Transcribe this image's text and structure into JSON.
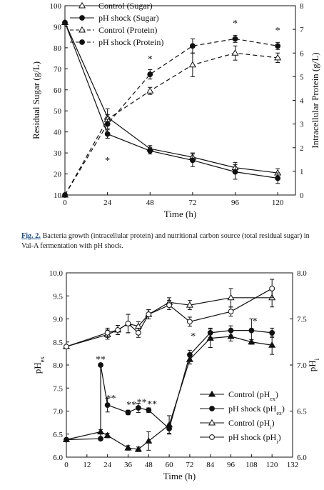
{
  "caption": {
    "label": "Fig. 2.",
    "text": " Bacteria growth (intracellular protein) and nutritional carbon source (total residual sugar) in Val-A fermentation with pH shock."
  },
  "chart_data": [
    {
      "type": "line",
      "xlabel": "Time (h)",
      "ylabel": "Residual Sugar (g/L)",
      "y2label": "Intracellular Protein (g/L)",
      "xlim": [
        0,
        130
      ],
      "ylim": [
        10,
        100
      ],
      "y2lim": [
        0,
        8
      ],
      "xticks": [
        0,
        24,
        48,
        72,
        96,
        120
      ],
      "yticks": [
        10,
        20,
        30,
        40,
        50,
        60,
        70,
        80,
        90,
        100
      ],
      "y2ticks": [
        0,
        1,
        2,
        3,
        4,
        5,
        6,
        7,
        8
      ],
      "legend_position": "top-left",
      "series": [
        {
          "name": "Control (Sugar)",
          "axis": "left",
          "dash": false,
          "marker": "triangle-open",
          "x": [
            0,
            24,
            48,
            72,
            96,
            120
          ],
          "y": [
            92,
            47,
            32,
            28,
            23,
            20.5
          ],
          "err": [
            0,
            4,
            1.5,
            2,
            2.5,
            2
          ]
        },
        {
          "name": "pH shock (Sugar)",
          "axis": "left",
          "dash": false,
          "marker": "circle-filled",
          "x": [
            0,
            24,
            48,
            72,
            96,
            120
          ],
          "y": [
            92,
            39,
            31,
            26.5,
            21,
            18
          ],
          "err": [
            0,
            2,
            1.5,
            3,
            3.5,
            2.5
          ]
        },
        {
          "name": "Control (Protein)",
          "axis": "right",
          "dash": true,
          "marker": "triangle-open",
          "x": [
            0,
            24,
            48,
            72,
            96,
            120
          ],
          "y": [
            0,
            3.2,
            4.4,
            5.5,
            6.0,
            5.8
          ],
          "err": [
            0,
            0.2,
            0.15,
            0.5,
            0.3,
            0.2
          ]
        },
        {
          "name": "pH shock (Protein)",
          "axis": "right",
          "dash": true,
          "marker": "circle-filled",
          "x": [
            0,
            24,
            48,
            72,
            96,
            120
          ],
          "y": [
            0,
            3.0,
            5.1,
            6.3,
            6.6,
            6.3
          ],
          "err": [
            0,
            0.2,
            0.2,
            0.3,
            0.15,
            0.15
          ]
        }
      ],
      "annotations": [
        {
          "text": "*",
          "x": 24,
          "y": 27,
          "axis": "left"
        },
        {
          "text": "*",
          "x": 48,
          "y": 5.8,
          "axis": "right"
        },
        {
          "text": "*",
          "x": 96,
          "y": 7.3,
          "axis": "right"
        },
        {
          "text": "*",
          "x": 120,
          "y": 7.0,
          "axis": "right"
        }
      ]
    },
    {
      "type": "line",
      "xlabel": "Time (h)",
      "ylabel": "pH",
      "ylabel_sub": "ex",
      "y2label": "pH",
      "y2label_sub": "i",
      "xlim": [
        0,
        132
      ],
      "ylim": [
        6.0,
        10.0
      ],
      "y2lim": [
        6.0,
        8.0
      ],
      "xticks": [
        0,
        12,
        24,
        36,
        48,
        60,
        72,
        84,
        96,
        108,
        120,
        132
      ],
      "yticks": [
        6.0,
        6.5,
        7.0,
        7.5,
        8.0,
        8.5,
        9.0,
        9.5,
        10.0
      ],
      "y2ticks": [
        6.0,
        6.5,
        7.0,
        7.5,
        8.0
      ],
      "legend_position": "bottom-right",
      "series": [
        {
          "name": "Control (pH",
          "sub": "ex",
          "name_end": ")",
          "axis": "left",
          "marker": "triangle-filled",
          "x": [
            0,
            20,
            24,
            36,
            42,
            48,
            60,
            72,
            84,
            96,
            108,
            120
          ],
          "y": [
            6.38,
            6.55,
            6.47,
            6.2,
            6.17,
            6.35,
            6.7,
            8.12,
            8.58,
            8.62,
            8.5,
            8.43
          ],
          "err": [
            0,
            0.05,
            0.05,
            0.05,
            0.05,
            0.2,
            0.2,
            0.1,
            0.2,
            0.1,
            0.05,
            0.2
          ]
        },
        {
          "name": "pH shock (pH",
          "sub": "ex",
          "name_end": ")",
          "axis": "left",
          "marker": "circle-filled",
          "x": [
            0,
            20,
            20,
            24,
            36,
            42,
            48,
            60,
            72,
            84,
            96,
            108,
            120
          ],
          "y": [
            6.38,
            6.4,
            8.0,
            7.13,
            6.97,
            7.07,
            7.02,
            6.62,
            8.22,
            8.7,
            8.75,
            8.75,
            8.7
          ],
          "err": [
            0,
            0,
            0,
            0.15,
            0.05,
            0.1,
            0.05,
            0.1,
            0.1,
            0.1,
            0.1,
            0.25,
            0.1
          ]
        },
        {
          "name": "Control (pH",
          "sub": "i",
          "name_end": ")",
          "axis": "right",
          "marker": "triangle-open",
          "x": [
            0,
            24,
            30,
            36,
            42,
            48,
            60,
            72,
            96,
            120
          ],
          "y": [
            7.2,
            7.33,
            7.38,
            7.45,
            7.42,
            7.55,
            7.68,
            7.65,
            7.73,
            7.73
          ],
          "err": [
            0,
            0.05,
            0.05,
            0.1,
            0.05,
            0.05,
            0.05,
            0.05,
            0.1,
            0.1
          ]
        },
        {
          "name": "pH shock (pH",
          "sub": "i",
          "name_end": ")",
          "axis": "right",
          "marker": "circle-open",
          "x": [
            0,
            24,
            30,
            36,
            42,
            48,
            60,
            72,
            96,
            120
          ],
          "y": [
            7.2,
            7.35,
            7.38,
            7.45,
            7.35,
            7.55,
            7.65,
            7.47,
            7.58,
            7.83
          ],
          "err": [
            0,
            0.05,
            0.05,
            0.1,
            0.05,
            0.05,
            0.05,
            0.05,
            0.05,
            0.1
          ]
        }
      ],
      "annotations": [
        {
          "text": "**",
          "x": 20,
          "y": 8.15,
          "axis": "left"
        },
        {
          "text": "**",
          "x": 26,
          "y": 7.3,
          "axis": "left"
        },
        {
          "text": "**",
          "x": 38,
          "y": 7.16,
          "axis": "left"
        },
        {
          "text": "**",
          "x": 44,
          "y": 7.22,
          "axis": "left"
        },
        {
          "text": "**",
          "x": 50,
          "y": 7.18,
          "axis": "left"
        },
        {
          "text": "*",
          "x": 74,
          "y": 8.65,
          "axis": "left"
        },
        {
          "text": "*",
          "x": 110,
          "y": 8.98,
          "axis": "left"
        }
      ]
    }
  ]
}
